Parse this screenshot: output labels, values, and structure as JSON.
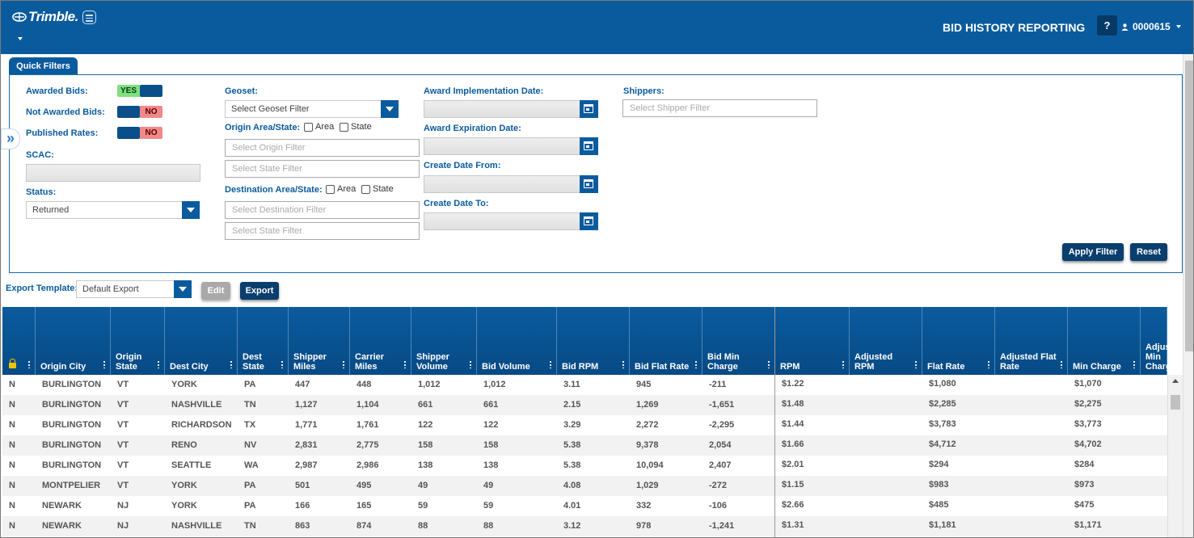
{
  "header": {
    "logo": "Trimble.",
    "app_title": "BID HISTORY REPORTING",
    "help_label": "?",
    "user_id": "0000615"
  },
  "quick_filters": {
    "tab_label": "Quick Filters",
    "awarded_bids": {
      "label": "Awarded Bids:",
      "value": "YES"
    },
    "not_awarded_bids": {
      "label": "Not Awarded Bids:",
      "value": "NO"
    },
    "published_rates": {
      "label": "Published Rates:",
      "value": "NO"
    },
    "scac": {
      "label": "SCAC:",
      "value": ""
    },
    "status": {
      "label": "Status:",
      "value": "Returned"
    },
    "geoset": {
      "label": "Geoset:",
      "placeholder": "Select Geoset Filter"
    },
    "origin": {
      "label": "Origin Area/State:",
      "area": "Area",
      "state": "State",
      "area_placeholder": "Select Origin Filter",
      "state_placeholder": "Select State Filter"
    },
    "destination": {
      "label": "Destination Area/State:",
      "area": "Area",
      "state": "State",
      "area_placeholder": "Select Destination Filter",
      "state_placeholder": "Select State Filter"
    },
    "award_impl_date": {
      "label": "Award Implementation Date:"
    },
    "award_exp_date": {
      "label": "Award Expiration Date:"
    },
    "create_date_from": {
      "label": "Create Date From:"
    },
    "create_date_to": {
      "label": "Create Date To:"
    },
    "shippers": {
      "label": "Shippers:",
      "placeholder": "Select Shipper Filter"
    },
    "apply_label": "Apply Filter",
    "reset_label": "Reset"
  },
  "export": {
    "label": "Export Template:",
    "template": "Default Export",
    "edit_label": "Edit",
    "export_label": "Export"
  },
  "grid": {
    "columns": [
      "",
      "Origin City",
      "Origin State",
      "Dest City",
      "Dest State",
      "Shipper Miles",
      "Carrier Miles",
      "Shipper Volume",
      "Bid Volume",
      "Bid RPM",
      "Bid Flat Rate",
      "Bid Min Charge",
      "RPM",
      "Adjusted RPM",
      "Flat Rate",
      "Adjusted Flat Rate",
      "Min Charge",
      "Adjusted Min Charge"
    ],
    "rows": [
      [
        "N",
        "BURLINGTON",
        "VT",
        "YORK",
        "PA",
        "447",
        "448",
        "1,012",
        "1,012",
        "3.11",
        "945",
        "-211",
        "$1.22",
        "",
        "$1,080",
        "",
        "$1,070",
        ""
      ],
      [
        "N",
        "BURLINGTON",
        "VT",
        "NASHVILLE",
        "TN",
        "1,127",
        "1,104",
        "661",
        "661",
        "2.15",
        "1,269",
        "-1,651",
        "$1.48",
        "",
        "$2,285",
        "",
        "$2,275",
        ""
      ],
      [
        "N",
        "BURLINGTON",
        "VT",
        "RICHARDSON",
        "TX",
        "1,771",
        "1,761",
        "122",
        "122",
        "3.29",
        "2,272",
        "-2,295",
        "$1.44",
        "",
        "$3,783",
        "",
        "$3,773",
        ""
      ],
      [
        "N",
        "BURLINGTON",
        "VT",
        "RENO",
        "NV",
        "2,831",
        "2,775",
        "158",
        "158",
        "5.38",
        "9,378",
        "2,054",
        "$1.66",
        "",
        "$4,712",
        "",
        "$4,702",
        ""
      ],
      [
        "N",
        "BURLINGTON",
        "VT",
        "SEATTLE",
        "WA",
        "2,987",
        "2,986",
        "138",
        "138",
        "5.38",
        "10,094",
        "2,407",
        "$2.01",
        "",
        "$294",
        "",
        "$284",
        ""
      ],
      [
        "N",
        "MONTPELIER",
        "VT",
        "YORK",
        "PA",
        "501",
        "495",
        "49",
        "49",
        "4.08",
        "1,029",
        "-272",
        "$1.15",
        "",
        "$983",
        "",
        "$973",
        ""
      ],
      [
        "N",
        "NEWARK",
        "NJ",
        "YORK",
        "PA",
        "166",
        "165",
        "59",
        "59",
        "4.01",
        "332",
        "-106",
        "$2.66",
        "",
        "$485",
        "",
        "$475",
        ""
      ],
      [
        "N",
        "NEWARK",
        "NJ",
        "NASHVILLE",
        "TN",
        "863",
        "874",
        "88",
        "88",
        "3.12",
        "978",
        "-1,241",
        "$1.31",
        "",
        "$1,181",
        "",
        "$1,171",
        ""
      ]
    ]
  }
}
